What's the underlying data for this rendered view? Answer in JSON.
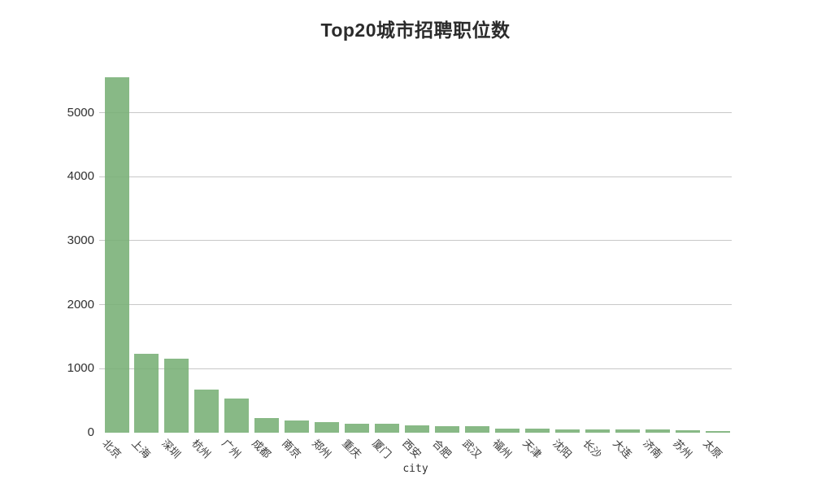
{
  "title": "Top20城市招聘职位数",
  "chart_data": {
    "type": "bar",
    "title": "Top20城市招聘职位数",
    "xlabel": "city",
    "ylabel": "",
    "categories": [
      "北京",
      "上海",
      "深圳",
      "杭州",
      "广州",
      "成都",
      "南京",
      "郑州",
      "重庆",
      "厦门",
      "西安",
      "合肥",
      "武汉",
      "福州",
      "天津",
      "沈阳",
      "长沙",
      "大连",
      "济南",
      "苏州",
      "太原"
    ],
    "values": [
      5550,
      1230,
      1150,
      670,
      530,
      235,
      185,
      160,
      145,
      135,
      110,
      105,
      100,
      60,
      58,
      55,
      48,
      46,
      45,
      44,
      30
    ],
    "yticks": [
      0,
      1000,
      2000,
      3000,
      4000,
      5000
    ],
    "ylim": [
      0,
      5600
    ],
    "grid": "horizontal-only",
    "legend": "none",
    "bar_color": "rgba(119,175,117,0.88)",
    "grid_color": "#c8c8c8",
    "text_color": "#2f2f2f",
    "background": "#ffffff"
  }
}
